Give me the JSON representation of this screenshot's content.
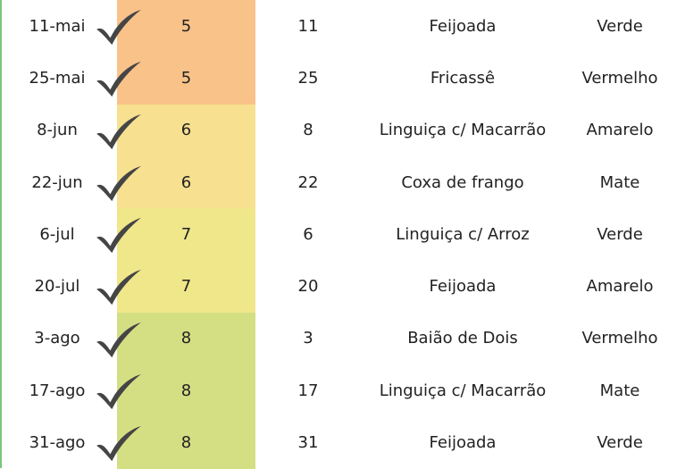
{
  "colors": {
    "month_5": "#f9c289",
    "month_6": "#f7e08f",
    "month_7": "#f0e68a",
    "month_8": "#d4df84",
    "check": "#454545",
    "left_rule": "#7cc47a"
  },
  "icon": "checkmark-icon",
  "rows": [
    {
      "date": "11-mai",
      "month": "5",
      "day": "11",
      "dish": "Feijoada",
      "color": "Verde",
      "band": "#f9c289"
    },
    {
      "date": "25-mai",
      "month": "5",
      "day": "25",
      "dish": "Fricassê",
      "color": "Vermelho",
      "band": "#f9c289"
    },
    {
      "date": "8-jun",
      "month": "6",
      "day": "8",
      "dish": "Linguiça c/ Macarrão",
      "color": "Amarelo",
      "band": "#f7e08f"
    },
    {
      "date": "22-jun",
      "month": "6",
      "day": "22",
      "dish": "Coxa de frango",
      "color": "Mate",
      "band": "#f7e08f"
    },
    {
      "date": "6-jul",
      "month": "7",
      "day": "6",
      "dish": "Linguiça c/ Arroz",
      "color": "Verde",
      "band": "#f0e68a"
    },
    {
      "date": "20-jul",
      "month": "7",
      "day": "20",
      "dish": "Feijoada",
      "color": "Amarelo",
      "band": "#f0e68a"
    },
    {
      "date": "3-ago",
      "month": "8",
      "day": "3",
      "dish": "Baião de Dois",
      "color": "Vermelho",
      "band": "#d4df84"
    },
    {
      "date": "17-ago",
      "month": "8",
      "day": "17",
      "dish": "Linguiça c/ Macarrão",
      "color": "Mate",
      "band": "#d4df84"
    },
    {
      "date": "31-ago",
      "month": "8",
      "day": "31",
      "dish": "Feijoada",
      "color": "Verde",
      "band": "#d4df84"
    }
  ]
}
